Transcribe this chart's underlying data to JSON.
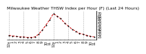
{
  "title": "Milwaukee Weather THSW Index per Hour (F) (Last 24 Hours)",
  "hours": [
    0,
    1,
    2,
    3,
    4,
    5,
    6,
    7,
    8,
    9,
    10,
    11,
    12,
    13,
    14,
    15,
    16,
    17,
    18,
    19,
    20,
    21,
    22,
    23
  ],
  "values": [
    28,
    27,
    26,
    25,
    25,
    24,
    24,
    25,
    30,
    38,
    48,
    58,
    70,
    65,
    60,
    52,
    46,
    40,
    36,
    32,
    30,
    28,
    26,
    25
  ],
  "x_labels": [
    "12a",
    "1",
    "2",
    "3",
    "4",
    "5",
    "6",
    "7",
    "8",
    "9",
    "10",
    "11",
    "12p",
    "1",
    "2",
    "3",
    "4",
    "5",
    "6",
    "7",
    "8",
    "9",
    "10",
    "11"
  ],
  "line_color": "#cc0000",
  "marker_color": "#000000",
  "grid_color": "#aaaaaa",
  "bg_color": "#ffffff",
  "ylim_min": 20,
  "ylim_max": 75,
  "y_ticks": [
    25,
    30,
    35,
    40,
    45,
    50,
    55,
    60,
    65,
    70
  ],
  "y_tick_labels": [
    "25",
    "30",
    "35",
    "40",
    "45",
    "50",
    "55",
    "60",
    "65",
    "70"
  ],
  "title_fontsize": 4.5,
  "tick_fontsize": 3.5
}
